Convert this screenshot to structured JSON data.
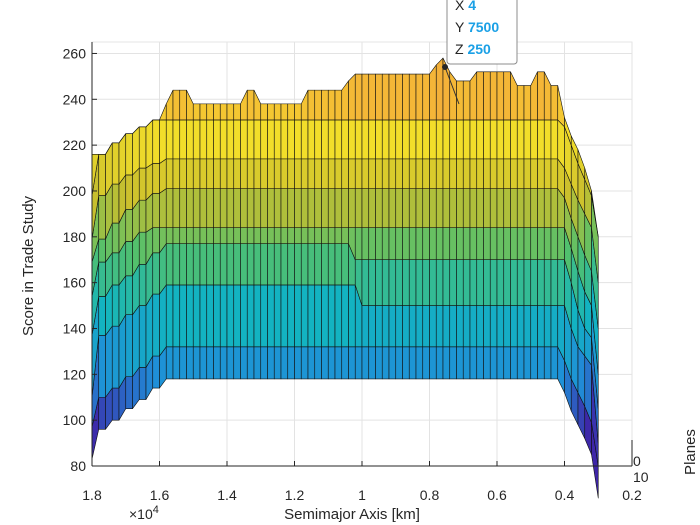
{
  "chart_data": {
    "type": "surface",
    "title": "",
    "xlabel": "Semimajor Axis [km]",
    "ylabel": "Score in Trade Study",
    "zlabel": "Planes",
    "x_exponent_label": "×10^4",
    "xlim": [
      0.2,
      1.8
    ],
    "x_reversed": true,
    "x_ticks": [
      "1.8",
      "1.6",
      "1.4",
      "1.2",
      "1",
      "0.8",
      "0.6",
      "0.4",
      "0.2"
    ],
    "ylim": [
      80,
      265
    ],
    "y_ticks": [
      "80",
      "100",
      "120",
      "140",
      "160",
      "180",
      "200",
      "220",
      "240",
      "260"
    ],
    "z_ticks": [
      "0",
      "10"
    ],
    "grid": true,
    "colormap": [
      "#3e26a8",
      "#1f8fd8",
      "#12b5c0",
      "#52c06d",
      "#cabf2d",
      "#f5e02a",
      "#f3a13e"
    ],
    "semimajor_axis_x1e4": [
      1.8,
      1.78,
      1.76,
      1.74,
      1.72,
      1.7,
      1.68,
      1.66,
      1.64,
      1.62,
      1.6,
      1.58,
      1.56,
      1.54,
      1.52,
      1.5,
      1.48,
      1.46,
      1.44,
      1.42,
      1.4,
      1.38,
      1.36,
      1.34,
      1.32,
      1.3,
      1.28,
      1.26,
      1.24,
      1.22,
      1.2,
      1.18,
      1.16,
      1.14,
      1.12,
      1.1,
      1.08,
      1.06,
      1.04,
      1.02,
      1.0,
      0.98,
      0.96,
      0.94,
      0.92,
      0.9,
      0.88,
      0.86,
      0.84,
      0.82,
      0.8,
      0.78,
      0.76,
      0.74,
      0.72,
      0.7,
      0.68,
      0.66,
      0.64,
      0.62,
      0.6,
      0.58,
      0.56,
      0.54,
      0.52,
      0.5,
      0.48,
      0.46,
      0.44,
      0.42,
      0.4,
      0.38,
      0.36,
      0.34,
      0.32,
      0.3
    ],
    "score_layers": [
      {
        "plane": 1,
        "values": [
          97,
          110,
          110,
          114,
          114,
          119,
          119,
          123,
          123,
          128,
          128,
          132,
          132,
          132,
          132,
          132,
          132,
          132,
          132,
          132,
          132,
          132,
          132,
          132,
          132,
          132,
          132,
          132,
          132,
          132,
          132,
          132,
          132,
          132,
          132,
          132,
          132,
          132,
          132,
          132,
          132,
          132,
          132,
          132,
          132,
          132,
          132,
          132,
          132,
          132,
          132,
          132,
          132,
          132,
          132,
          132,
          132,
          132,
          132,
          132,
          132,
          132,
          132,
          132,
          132,
          132,
          132,
          132,
          132,
          132,
          126,
          118,
          112,
          106,
          99,
          80
        ]
      },
      {
        "plane": 2,
        "values": [
          110,
          137,
          137,
          141,
          141,
          146,
          146,
          150,
          150,
          155,
          155,
          159,
          159,
          159,
          159,
          159,
          159,
          159,
          159,
          159,
          159,
          159,
          159,
          159,
          159,
          159,
          159,
          159,
          159,
          159,
          159,
          159,
          159,
          159,
          159,
          159,
          159,
          159,
          159,
          159,
          150,
          150,
          150,
          150,
          150,
          150,
          150,
          150,
          150,
          150,
          150,
          150,
          150,
          150,
          150,
          150,
          150,
          150,
          150,
          150,
          150,
          150,
          150,
          150,
          150,
          150,
          150,
          150,
          150,
          150,
          150,
          140,
          132,
          128,
          124,
          90
        ]
      },
      {
        "plane": 3,
        "values": [
          137,
          154,
          154,
          159,
          159,
          163,
          163,
          168,
          168,
          173,
          173,
          177,
          177,
          177,
          177,
          177,
          177,
          177,
          177,
          177,
          177,
          177,
          177,
          177,
          177,
          177,
          177,
          177,
          177,
          177,
          177,
          177,
          177,
          177,
          177,
          177,
          177,
          177,
          177,
          170,
          170,
          170,
          170,
          170,
          170,
          170,
          170,
          170,
          170,
          170,
          170,
          170,
          170,
          170,
          170,
          170,
          170,
          170,
          170,
          170,
          170,
          170,
          170,
          170,
          170,
          170,
          170,
          170,
          170,
          170,
          170,
          160,
          148,
          140,
          136,
          105
        ]
      },
      {
        "plane": 4,
        "values": [
          154,
          169,
          169,
          173,
          173,
          178,
          178,
          182,
          182,
          184,
          184,
          184,
          184,
          184,
          184,
          184,
          184,
          184,
          184,
          184,
          184,
          184,
          184,
          184,
          184,
          184,
          184,
          184,
          184,
          184,
          184,
          184,
          184,
          184,
          184,
          184,
          184,
          184,
          184,
          184,
          184,
          184,
          184,
          184,
          184,
          184,
          184,
          184,
          184,
          184,
          184,
          184,
          184,
          184,
          184,
          184,
          184,
          184,
          184,
          184,
          184,
          184,
          184,
          184,
          184,
          184,
          184,
          184,
          184,
          184,
          184,
          175,
          165,
          156,
          150,
          120
        ]
      },
      {
        "plane": 5,
        "values": [
          169,
          179,
          179,
          186,
          186,
          192,
          192,
          196,
          196,
          199,
          199,
          201,
          201,
          201,
          201,
          201,
          201,
          201,
          201,
          201,
          201,
          201,
          201,
          201,
          201,
          201,
          201,
          201,
          201,
          201,
          201,
          201,
          201,
          201,
          201,
          201,
          201,
          201,
          201,
          201,
          201,
          201,
          201,
          201,
          201,
          201,
          201,
          201,
          201,
          201,
          201,
          201,
          201,
          201,
          201,
          201,
          201,
          201,
          201,
          201,
          201,
          201,
          201,
          201,
          201,
          201,
          201,
          201,
          201,
          201,
          197,
          188,
          180,
          172,
          165,
          140
        ]
      },
      {
        "plane": 6,
        "values": [
          179,
          198,
          198,
          203,
          203,
          207,
          207,
          210,
          210,
          212,
          212,
          214,
          214,
          214,
          214,
          214,
          214,
          214,
          214,
          214,
          214,
          214,
          214,
          214,
          214,
          214,
          214,
          214,
          214,
          214,
          214,
          214,
          214,
          214,
          214,
          214,
          214,
          214,
          214,
          214,
          214,
          214,
          214,
          214,
          214,
          214,
          214,
          214,
          214,
          214,
          214,
          214,
          214,
          214,
          214,
          214,
          214,
          214,
          214,
          214,
          214,
          214,
          214,
          214,
          214,
          214,
          214,
          214,
          214,
          214,
          210,
          203,
          196,
          190,
          184,
          160
        ]
      },
      {
        "plane": 7,
        "values": [
          198,
          216,
          216,
          221,
          221,
          225,
          225,
          228,
          228,
          231,
          231,
          231,
          231,
          231,
          231,
          231,
          231,
          231,
          231,
          231,
          231,
          231,
          231,
          231,
          231,
          231,
          231,
          231,
          231,
          231,
          231,
          231,
          231,
          231,
          231,
          231,
          231,
          231,
          231,
          231,
          231,
          231,
          231,
          231,
          231,
          231,
          231,
          231,
          231,
          231,
          231,
          231,
          231,
          231,
          231,
          231,
          231,
          231,
          231,
          231,
          231,
          231,
          231,
          231,
          231,
          231,
          231,
          231,
          231,
          231,
          228,
          220,
          212,
          205,
          198,
          180
        ]
      },
      {
        "plane": 8,
        "values": [
          216,
          216,
          216,
          221,
          221,
          225,
          225,
          228,
          228,
          231,
          231,
          238,
          244,
          244,
          244,
          238,
          238,
          238,
          238,
          238,
          238,
          238,
          238,
          244,
          244,
          238,
          238,
          238,
          238,
          238,
          238,
          238,
          244,
          244,
          244,
          244,
          244,
          244,
          248,
          251,
          251,
          251,
          251,
          251,
          251,
          251,
          251,
          251,
          251,
          251,
          251,
          255,
          258,
          252,
          248,
          248,
          248,
          252,
          252,
          252,
          252,
          252,
          252,
          246,
          246,
          246,
          252,
          252,
          246,
          246,
          232,
          224,
          218,
          210,
          200,
          180
        ]
      }
    ],
    "datatip": {
      "x_label": "X",
      "x_value": "4",
      "y_label": "Y",
      "y_value": "7500",
      "z_label": "Z",
      "z_value": "250"
    }
  }
}
